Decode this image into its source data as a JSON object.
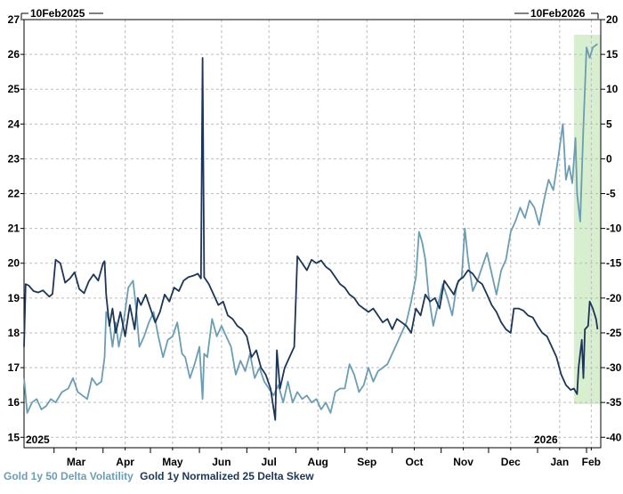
{
  "chart_data": {
    "type": "line",
    "range_label_left": "10Feb2025",
    "range_label_right": "10Feb2026",
    "year_labels": [
      "2025",
      "2026"
    ],
    "x_ticks": [
      "Mar",
      "Apr",
      "May",
      "Jun",
      "Jul",
      "Aug",
      "Sep",
      "Oct",
      "Nov",
      "Dec",
      "Jan",
      "Feb"
    ],
    "x_range": [
      "2025-02-10",
      "2026-02-10"
    ],
    "left_axis": {
      "ticks": [
        15,
        16,
        17,
        18,
        19,
        20,
        21,
        22,
        23,
        24,
        25,
        26,
        27
      ],
      "range": [
        14.7,
        27
      ]
    },
    "right_axis": {
      "ticks": [
        -40,
        -35,
        -30,
        -25,
        -20,
        -15,
        -10,
        -5,
        0,
        5,
        10,
        15,
        20
      ],
      "range": [
        -41.5,
        20
      ]
    },
    "grid": true,
    "highlight": {
      "from": "2026-01-24",
      "to": "2026-02-10",
      "color": "#d8efcf"
    },
    "series": [
      {
        "name": "Gold 1y 50 Delta Volatility",
        "axis": "left",
        "color": "#6c9db3",
        "points": [
          [
            "2025-02-10",
            16.7
          ],
          [
            "2025-02-12",
            15.7
          ],
          [
            "2025-02-15",
            16.0
          ],
          [
            "2025-02-18",
            16.1
          ],
          [
            "2025-02-21",
            15.8
          ],
          [
            "2025-02-24",
            15.9
          ],
          [
            "2025-02-27",
            16.1
          ],
          [
            "2025-03-02",
            16.0
          ],
          [
            "2025-03-06",
            16.3
          ],
          [
            "2025-03-10",
            16.4
          ],
          [
            "2025-03-13",
            16.7
          ],
          [
            "2025-03-16",
            16.3
          ],
          [
            "2025-03-19",
            16.2
          ],
          [
            "2025-03-22",
            16.1
          ],
          [
            "2025-03-25",
            16.7
          ],
          [
            "2025-03-28",
            16.5
          ],
          [
            "2025-03-31",
            16.6
          ],
          [
            "2025-04-02",
            17.3
          ],
          [
            "2025-04-03",
            18.6
          ],
          [
            "2025-04-05",
            18.3
          ],
          [
            "2025-04-07",
            17.6
          ],
          [
            "2025-04-09",
            18.3
          ],
          [
            "2025-04-11",
            17.6
          ],
          [
            "2025-04-14",
            18.3
          ],
          [
            "2025-04-17",
            19.3
          ],
          [
            "2025-04-20",
            19.5
          ],
          [
            "2025-04-22",
            18.7
          ],
          [
            "2025-04-24",
            17.6
          ],
          [
            "2025-04-27",
            17.9
          ],
          [
            "2025-04-30",
            18.3
          ],
          [
            "2025-05-03",
            18.6
          ],
          [
            "2025-05-06",
            17.9
          ],
          [
            "2025-05-09",
            17.3
          ],
          [
            "2025-05-12",
            17.8
          ],
          [
            "2025-05-15",
            17.9
          ],
          [
            "2025-05-18",
            18.3
          ],
          [
            "2025-05-21",
            17.4
          ],
          [
            "2025-05-23",
            17.3
          ],
          [
            "2025-05-26",
            16.7
          ],
          [
            "2025-05-29",
            17.1
          ],
          [
            "2025-06-01",
            17.6
          ],
          [
            "2025-06-03",
            16.1
          ],
          [
            "2025-06-04",
            17.4
          ],
          [
            "2025-06-06",
            17.3
          ],
          [
            "2025-06-09",
            18.4
          ],
          [
            "2025-06-12",
            17.9
          ],
          [
            "2025-06-15",
            18.2
          ],
          [
            "2025-06-18",
            17.9
          ],
          [
            "2025-06-21",
            17.6
          ],
          [
            "2025-06-24",
            16.8
          ],
          [
            "2025-06-27",
            17.2
          ],
          [
            "2025-06-30",
            16.9
          ],
          [
            "2025-07-03",
            17.4
          ],
          [
            "2025-07-06",
            16.7
          ],
          [
            "2025-07-09",
            17.0
          ],
          [
            "2025-07-12",
            16.6
          ],
          [
            "2025-07-15",
            16.4
          ],
          [
            "2025-07-18",
            16.2
          ],
          [
            "2025-07-21",
            16.5
          ],
          [
            "2025-07-24",
            16.0
          ],
          [
            "2025-07-27",
            16.6
          ],
          [
            "2025-07-30",
            16.0
          ],
          [
            "2025-08-02",
            16.3
          ],
          [
            "2025-08-05",
            16.1
          ],
          [
            "2025-08-08",
            16.2
          ],
          [
            "2025-08-11",
            16.0
          ],
          [
            "2025-08-14",
            16.1
          ],
          [
            "2025-08-17",
            15.8
          ],
          [
            "2025-08-20",
            16.0
          ],
          [
            "2025-08-23",
            15.7
          ],
          [
            "2025-08-26",
            16.3
          ],
          [
            "2025-08-29",
            16.4
          ],
          [
            "2025-09-01",
            16.4
          ],
          [
            "2025-09-04",
            17.1
          ],
          [
            "2025-09-07",
            16.8
          ],
          [
            "2025-09-10",
            16.3
          ],
          [
            "2025-09-13",
            16.5
          ],
          [
            "2025-09-16",
            17.0
          ],
          [
            "2025-09-19",
            16.6
          ],
          [
            "2025-09-22",
            16.9
          ],
          [
            "2025-09-25",
            17.0
          ],
          [
            "2025-09-28",
            17.1
          ],
          [
            "2025-10-01",
            17.4
          ],
          [
            "2025-10-04",
            17.7
          ],
          [
            "2025-10-07",
            18.0
          ],
          [
            "2025-10-10",
            18.3
          ],
          [
            "2025-10-13",
            18.9
          ],
          [
            "2025-10-16",
            19.6
          ],
          [
            "2025-10-18",
            20.9
          ],
          [
            "2025-10-20",
            20.6
          ],
          [
            "2025-10-22",
            20.1
          ],
          [
            "2025-10-24",
            19.1
          ],
          [
            "2025-10-27",
            18.2
          ],
          [
            "2025-10-30",
            18.8
          ],
          [
            "2025-11-02",
            19.4
          ],
          [
            "2025-11-05",
            19.0
          ],
          [
            "2025-11-08",
            18.5
          ],
          [
            "2025-11-11",
            19.4
          ],
          [
            "2025-11-14",
            19.6
          ],
          [
            "2025-11-16",
            21.0
          ],
          [
            "2025-11-18",
            20.1
          ],
          [
            "2025-11-21",
            19.2
          ],
          [
            "2025-11-24",
            19.5
          ],
          [
            "2025-11-27",
            19.9
          ],
          [
            "2025-11-30",
            20.3
          ],
          [
            "2025-12-03",
            19.7
          ],
          [
            "2025-12-06",
            19.1
          ],
          [
            "2025-12-09",
            19.8
          ],
          [
            "2025-12-12",
            20.1
          ],
          [
            "2025-12-15",
            20.9
          ],
          [
            "2025-12-18",
            21.2
          ],
          [
            "2025-12-21",
            21.6
          ],
          [
            "2025-12-24",
            21.3
          ],
          [
            "2025-12-27",
            21.8
          ],
          [
            "2025-12-30",
            21.6
          ],
          [
            "2026-01-02",
            21.1
          ],
          [
            "2026-01-05",
            21.8
          ],
          [
            "2026-01-08",
            22.4
          ],
          [
            "2026-01-11",
            22.1
          ],
          [
            "2026-01-14",
            23.0
          ],
          [
            "2026-01-17",
            24.0
          ],
          [
            "2026-01-19",
            22.4
          ],
          [
            "2026-01-21",
            22.8
          ],
          [
            "2026-01-23",
            22.3
          ],
          [
            "2026-01-25",
            23.6
          ],
          [
            "2026-01-26",
            22.0
          ],
          [
            "2026-01-28",
            21.2
          ],
          [
            "2026-01-30",
            23.9
          ],
          [
            "2026-02-01",
            26.2
          ],
          [
            "2026-02-03",
            25.9
          ],
          [
            "2026-02-05",
            26.2
          ],
          [
            "2026-02-08",
            26.3
          ]
        ]
      },
      {
        "name": "Gold 1y Normalized 25 Delta Skew",
        "axis": "right",
        "color": "#1d3557",
        "points": [
          [
            "2025-02-10",
            -27.0
          ],
          [
            "2025-02-11",
            -18.0
          ],
          [
            "2025-02-13",
            -18.2
          ],
          [
            "2025-02-16",
            -19.0
          ],
          [
            "2025-02-19",
            -19.2
          ],
          [
            "2025-02-22",
            -18.9
          ],
          [
            "2025-02-26",
            -19.8
          ],
          [
            "2025-02-28",
            -19.4
          ],
          [
            "2025-03-02",
            -14.5
          ],
          [
            "2025-03-05",
            -15.0
          ],
          [
            "2025-03-08",
            -17.8
          ],
          [
            "2025-03-11",
            -17.2
          ],
          [
            "2025-03-14",
            -16.3
          ],
          [
            "2025-03-17",
            -18.7
          ],
          [
            "2025-03-20",
            -19.3
          ],
          [
            "2025-03-23",
            -17.6
          ],
          [
            "2025-03-26",
            -16.6
          ],
          [
            "2025-03-29",
            -17.5
          ],
          [
            "2025-04-01",
            -15.0
          ],
          [
            "2025-04-02",
            -14.7
          ],
          [
            "2025-04-03",
            -19.5
          ],
          [
            "2025-04-05",
            -24.0
          ],
          [
            "2025-04-07",
            -21.5
          ],
          [
            "2025-04-09",
            -25.0
          ],
          [
            "2025-04-12",
            -22.0
          ],
          [
            "2025-04-15",
            -25.5
          ],
          [
            "2025-04-18",
            -21.0
          ],
          [
            "2025-04-21",
            -24.5
          ],
          [
            "2025-04-23",
            -20.0
          ],
          [
            "2025-04-25",
            -21.0
          ],
          [
            "2025-04-28",
            -19.5
          ],
          [
            "2025-05-01",
            -21.5
          ],
          [
            "2025-05-04",
            -23.5
          ],
          [
            "2025-05-07",
            -22.0
          ],
          [
            "2025-05-10",
            -19.5
          ],
          [
            "2025-05-13",
            -20.5
          ],
          [
            "2025-05-16",
            -18.5
          ],
          [
            "2025-05-19",
            -19.0
          ],
          [
            "2025-05-22",
            -17.5
          ],
          [
            "2025-05-25",
            -17.0
          ],
          [
            "2025-05-28",
            -16.8
          ],
          [
            "2025-05-31",
            -16.5
          ],
          [
            "2025-06-02",
            -17.2
          ],
          [
            "2025-06-03",
            14.5
          ],
          [
            "2025-06-04",
            -17.0
          ],
          [
            "2025-06-07",
            -18.0
          ],
          [
            "2025-06-10",
            -19.5
          ],
          [
            "2025-06-13",
            -21.0
          ],
          [
            "2025-06-16",
            -20.5
          ],
          [
            "2025-06-19",
            -22.5
          ],
          [
            "2025-06-22",
            -23.0
          ],
          [
            "2025-06-25",
            -24.0
          ],
          [
            "2025-06-28",
            -24.5
          ],
          [
            "2025-07-01",
            -25.5
          ],
          [
            "2025-07-04",
            -28.5
          ],
          [
            "2025-07-07",
            -27.5
          ],
          [
            "2025-07-10",
            -30.0
          ],
          [
            "2025-07-13",
            -31.0
          ],
          [
            "2025-07-16",
            -33.0
          ],
          [
            "2025-07-19",
            -37.5
          ],
          [
            "2025-07-20",
            -27.5
          ],
          [
            "2025-07-22",
            -33.0
          ],
          [
            "2025-07-25",
            -30.0
          ],
          [
            "2025-07-28",
            -28.5
          ],
          [
            "2025-07-31",
            -27.0
          ],
          [
            "2025-08-02",
            -14.0
          ],
          [
            "2025-08-05",
            -15.0
          ],
          [
            "2025-08-08",
            -16.0
          ],
          [
            "2025-08-11",
            -14.5
          ],
          [
            "2025-08-14",
            -15.0
          ],
          [
            "2025-08-17",
            -14.6
          ],
          [
            "2025-08-20",
            -15.5
          ],
          [
            "2025-08-23",
            -16.0
          ],
          [
            "2025-08-26",
            -17.0
          ],
          [
            "2025-08-29",
            -18.0
          ],
          [
            "2025-09-01",
            -18.5
          ],
          [
            "2025-09-04",
            -19.5
          ],
          [
            "2025-09-07",
            -20.0
          ],
          [
            "2025-09-10",
            -21.0
          ],
          [
            "2025-09-13",
            -21.5
          ],
          [
            "2025-09-16",
            -22.0
          ],
          [
            "2025-09-19",
            -21.5
          ],
          [
            "2025-09-22",
            -22.5
          ],
          [
            "2025-09-25",
            -23.5
          ],
          [
            "2025-09-28",
            -23.0
          ],
          [
            "2025-10-01",
            -24.5
          ],
          [
            "2025-10-04",
            -23.0
          ],
          [
            "2025-10-07",
            -23.5
          ],
          [
            "2025-10-10",
            -24.0
          ],
          [
            "2025-10-13",
            -25.0
          ],
          [
            "2025-10-16",
            -21.5
          ],
          [
            "2025-10-19",
            -22.5
          ],
          [
            "2025-10-22",
            -19.5
          ],
          [
            "2025-10-25",
            -20.5
          ],
          [
            "2025-10-28",
            -20.0
          ],
          [
            "2025-10-31",
            -21.5
          ],
          [
            "2025-11-03",
            -17.5
          ],
          [
            "2025-11-06",
            -18.5
          ],
          [
            "2025-11-09",
            -19.5
          ],
          [
            "2025-11-12",
            -17.5
          ],
          [
            "2025-11-15",
            -17.0
          ],
          [
            "2025-11-18",
            -16.0
          ],
          [
            "2025-11-21",
            -16.5
          ],
          [
            "2025-11-24",
            -17.5
          ],
          [
            "2025-11-27",
            -18.0
          ],
          [
            "2025-11-30",
            -19.5
          ],
          [
            "2025-12-03",
            -21.0
          ],
          [
            "2025-12-06",
            -22.0
          ],
          [
            "2025-12-09",
            -23.5
          ],
          [
            "2025-12-12",
            -24.5
          ],
          [
            "2025-12-15",
            -25.0
          ],
          [
            "2025-12-17",
            -21.5
          ],
          [
            "2025-12-20",
            -21.5
          ],
          [
            "2025-12-23",
            -21.8
          ],
          [
            "2025-12-26",
            -22.5
          ],
          [
            "2025-12-29",
            -22.8
          ],
          [
            "2026-01-01",
            -24.0
          ],
          [
            "2026-01-04",
            -25.0
          ],
          [
            "2026-01-07",
            -25.5
          ],
          [
            "2026-01-10",
            -27.0
          ],
          [
            "2026-01-13",
            -28.5
          ],
          [
            "2026-01-16",
            -31.0
          ],
          [
            "2026-01-19",
            -32.5
          ],
          [
            "2026-01-22",
            -33.2
          ],
          [
            "2026-01-24",
            -33.0
          ],
          [
            "2026-01-26",
            -33.8
          ],
          [
            "2026-01-27",
            -30.0
          ],
          [
            "2026-01-29",
            -26.0
          ],
          [
            "2026-01-30",
            -31.5
          ],
          [
            "2026-01-31",
            -24.5
          ],
          [
            "2026-02-02",
            -24.0
          ],
          [
            "2026-02-03",
            -20.5
          ],
          [
            "2026-02-05",
            -21.5
          ],
          [
            "2026-02-07",
            -23.0
          ],
          [
            "2026-02-08",
            -24.5
          ]
        ]
      }
    ]
  }
}
